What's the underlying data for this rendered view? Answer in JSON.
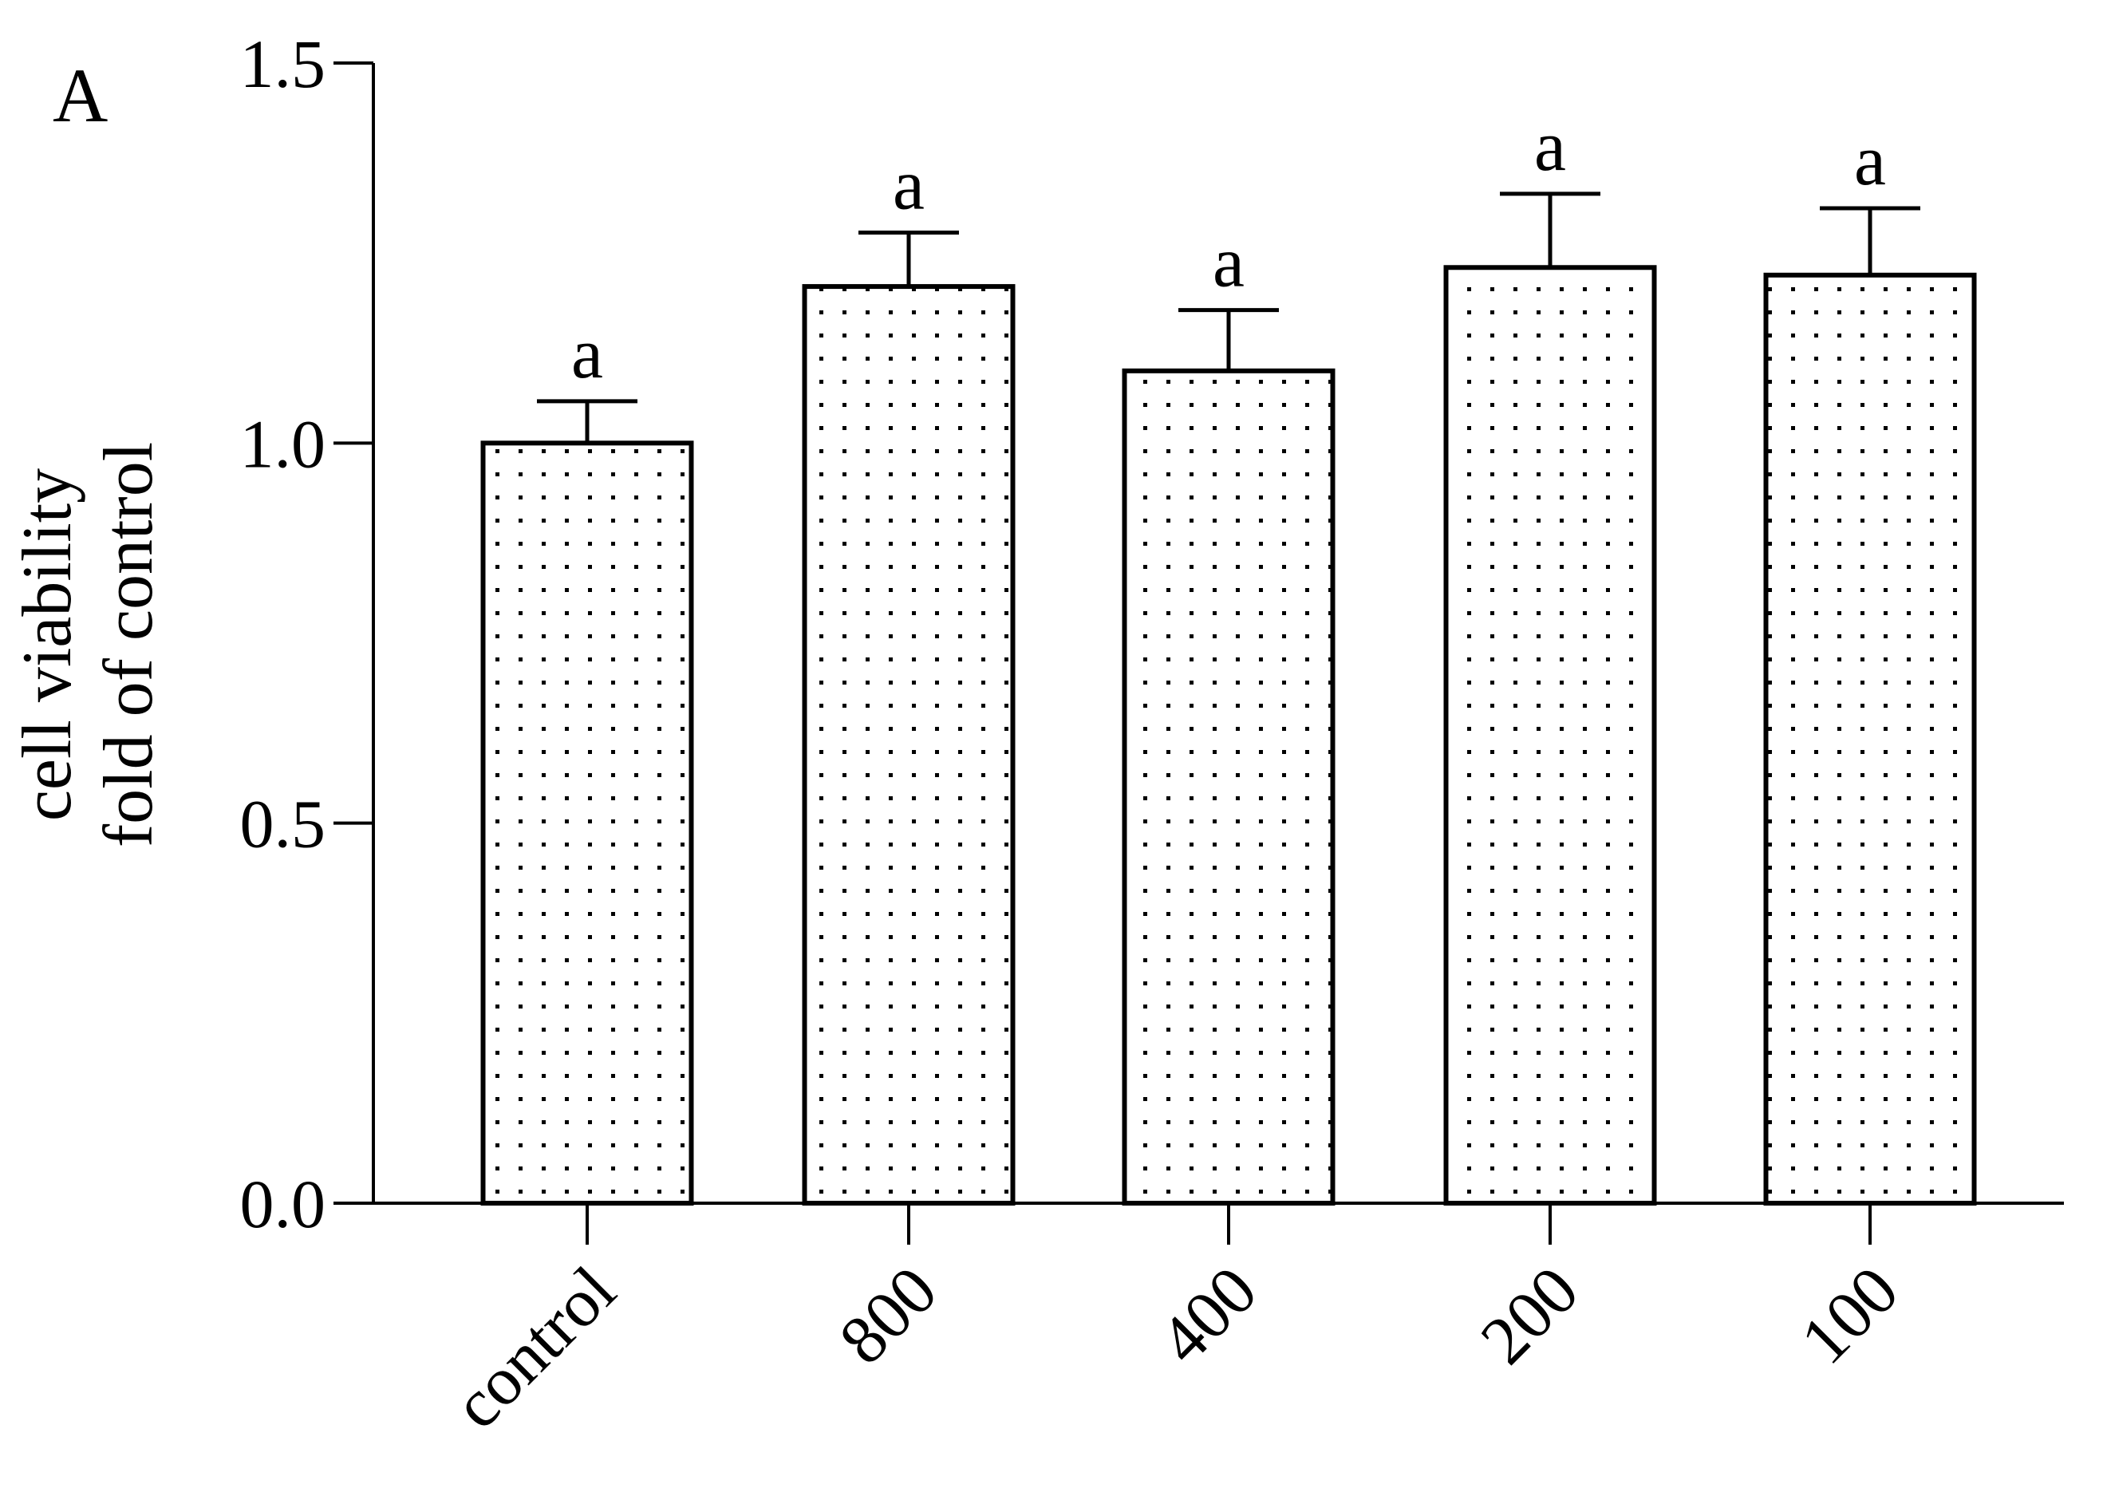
{
  "chart_data": {
    "type": "bar",
    "panel_label": "A",
    "ylabel": [
      "cell viability",
      "fold of control"
    ],
    "categories": [
      "control",
      "800",
      "400",
      "200",
      "100"
    ],
    "values": [
      1.0,
      1.206,
      1.095,
      1.231,
      1.221
    ],
    "errors": [
      0.055,
      0.071,
      0.08,
      0.097,
      0.088
    ],
    "annotations": [
      "a",
      "a",
      "a",
      "a",
      "a"
    ],
    "color": "#000000",
    "ylim": [
      0,
      1.5
    ],
    "yticks": [
      {
        "value": 0,
        "label": "0.0"
      },
      0.5,
      {
        "value": 1,
        "label": "1.0"
      },
      1.5
    ]
  }
}
